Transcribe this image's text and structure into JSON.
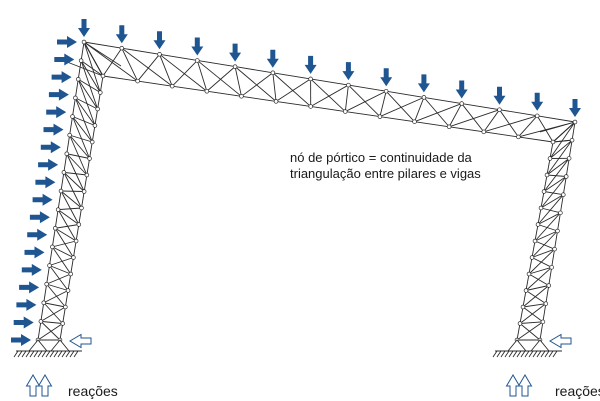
{
  "annotation": {
    "line1": "nó de pórtico = continuidade da",
    "line2": "triangulação entre pilares e vigas"
  },
  "reactions": {
    "left_label": "reações",
    "right_label": "reações"
  },
  "colors": {
    "load_arrow": "#1f5691",
    "truss": "#2b2b2b",
    "reaction_arrow": "#1f5691"
  },
  "loads": {
    "vertical_count": 14,
    "horizontal_count": 18
  }
}
